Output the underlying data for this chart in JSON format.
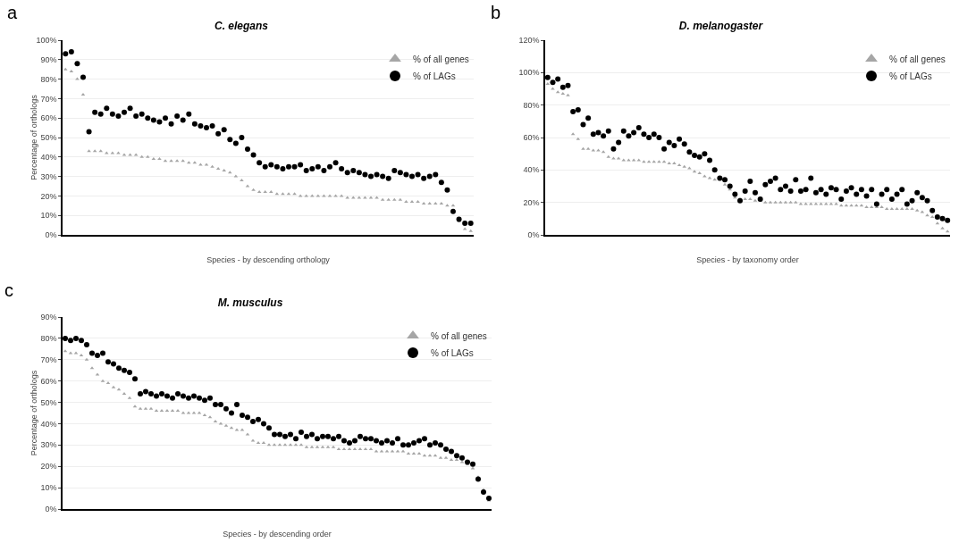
{
  "chart_data": [
    {
      "type": "scatter",
      "title": "C. elegans",
      "xlabel": "Species - by descending orthology",
      "ylabel": "Percentage of orthologs",
      "annotations": [
        "a"
      ],
      "grid": "y",
      "legend": "top right",
      "categories": [
        null,
        null,
        null,
        null,
        null,
        null,
        null,
        null,
        null,
        null,
        null,
        null,
        null,
        null,
        null,
        null,
        null,
        null,
        null,
        null,
        null,
        null,
        null,
        null,
        null,
        null,
        null,
        null,
        null,
        null,
        null,
        null,
        null,
        null,
        null,
        null,
        null,
        null,
        null,
        null,
        null,
        null,
        null,
        null,
        null,
        null,
        null,
        null,
        null,
        null,
        null,
        null,
        null,
        null,
        null,
        null,
        null,
        null,
        null,
        null,
        null,
        null,
        null,
        null,
        null,
        null,
        null,
        null,
        null,
        null
      ],
      "ylim": [
        0,
        100
      ],
      "yticks": [
        {
          "value": 0,
          "label": "0%"
        },
        {
          "value": 10,
          "label": "10%"
        },
        {
          "value": 20,
          "label": "20%"
        },
        {
          "value": 30,
          "label": "30%"
        },
        {
          "value": 40,
          "label": "40%"
        },
        {
          "value": 50,
          "label": "50%"
        },
        {
          "value": 60,
          "label": "60%"
        },
        {
          "value": 70,
          "label": "70%"
        },
        {
          "value": 80,
          "label": "80%"
        },
        {
          "value": 90,
          "label": "90%"
        },
        {
          "value": 100,
          "label": "100%"
        }
      ],
      "series": [
        {
          "name": "% of all genes",
          "color": "#a6a6a6",
          "marker": "triangle",
          "values": [
            85,
            84,
            80,
            72,
            43,
            43,
            43,
            42,
            42,
            42,
            41,
            41,
            41,
            40,
            40,
            39,
            39,
            38,
            38,
            38,
            38,
            37,
            37,
            36,
            36,
            35,
            34,
            33,
            32,
            30,
            28,
            25,
            23,
            22,
            22,
            22,
            21,
            21,
            21,
            21,
            20,
            20,
            20,
            20,
            20,
            20,
            20,
            20,
            19,
            19,
            19,
            19,
            19,
            19,
            18,
            18,
            18,
            18,
            17,
            17,
            17,
            16,
            16,
            16,
            16,
            15,
            15,
            7,
            3,
            2
          ]
        },
        {
          "name": "% of LAGs",
          "color": "#000000",
          "marker": "circle",
          "values": [
            93,
            94,
            88,
            81,
            53,
            63,
            62,
            65,
            62,
            61,
            63,
            65,
            61,
            62,
            60,
            59,
            58,
            60,
            57,
            61,
            59,
            62,
            57,
            56,
            55,
            56,
            52,
            54,
            49,
            47,
            50,
            44,
            41,
            37,
            35,
            36,
            35,
            34,
            35,
            35,
            36,
            33,
            34,
            35,
            33,
            35,
            37,
            34,
            32,
            33,
            32,
            31,
            30,
            31,
            30,
            29,
            33,
            32,
            31,
            30,
            31,
            29,
            30,
            31,
            27,
            23,
            12,
            8,
            6,
            6
          ]
        }
      ]
    },
    {
      "type": "scatter",
      "title": "D. melanogaster",
      "xlabel": "Species - by taxonomy order",
      "annotations": [
        "b"
      ],
      "grid": "y",
      "legend": "top right",
      "categories": [
        null,
        null,
        null,
        null,
        null,
        null,
        null,
        null,
        null,
        null,
        null,
        null,
        null,
        null,
        null,
        null,
        null,
        null,
        null,
        null,
        null,
        null,
        null,
        null,
        null,
        null,
        null,
        null,
        null,
        null,
        null,
        null,
        null,
        null,
        null,
        null,
        null,
        null,
        null,
        null,
        null,
        null,
        null,
        null,
        null,
        null,
        null,
        null,
        null,
        null,
        null,
        null,
        null,
        null,
        null,
        null,
        null,
        null,
        null,
        null,
        null,
        null,
        null,
        null,
        null,
        null,
        null,
        null,
        null,
        null,
        null,
        null,
        null,
        null,
        null,
        null,
        null,
        null,
        null,
        null
      ],
      "ylim": [
        0,
        120
      ],
      "yticks": [
        {
          "value": 0,
          "label": "0%"
        },
        {
          "value": 20,
          "label": "20%"
        },
        {
          "value": 40,
          "label": "40%"
        },
        {
          "value": 60,
          "label": "60%"
        },
        {
          "value": 80,
          "label": "80%"
        },
        {
          "value": 100,
          "label": "100%"
        },
        {
          "value": 120,
          "label": "120%"
        }
      ],
      "series": [
        {
          "name": "% of all genes",
          "color": "#a6a6a6",
          "marker": "triangle",
          "values": [
            93,
            90,
            88,
            87,
            86,
            62,
            59,
            53,
            53,
            52,
            52,
            51,
            48,
            47,
            47,
            46,
            46,
            46,
            46,
            45,
            45,
            45,
            45,
            45,
            44,
            44,
            43,
            42,
            41,
            39,
            38,
            36,
            35,
            34,
            34,
            31,
            28,
            23,
            22,
            22,
            22,
            21,
            21,
            20,
            20,
            20,
            20,
            20,
            20,
            20,
            19,
            19,
            19,
            19,
            19,
            19,
            19,
            19,
            18,
            18,
            18,
            18,
            18,
            17,
            17,
            17,
            17,
            16,
            16,
            16,
            16,
            16,
            16,
            15,
            14,
            12,
            11,
            7,
            4,
            2
          ]
        },
        {
          "name": "% of LAGs",
          "color": "#000000",
          "marker": "circle",
          "values": [
            97,
            94,
            96,
            91,
            92,
            76,
            77,
            68,
            72,
            62,
            63,
            61,
            64,
            53,
            57,
            64,
            61,
            63,
            66,
            62,
            60,
            62,
            60,
            53,
            57,
            55,
            59,
            56,
            51,
            49,
            48,
            50,
            46,
            40,
            35,
            34,
            30,
            25,
            21,
            27,
            33,
            26,
            22,
            31,
            33,
            35,
            28,
            30,
            27,
            34,
            27,
            28,
            35,
            26,
            28,
            25,
            29,
            28,
            22,
            27,
            29,
            25,
            28,
            24,
            28,
            19,
            25,
            28,
            22,
            25,
            28,
            19,
            21,
            26,
            23,
            21,
            15,
            11,
            10,
            9
          ]
        }
      ]
    },
    {
      "type": "scatter",
      "title": "M. musculus",
      "xlabel": "Species - by descending order",
      "ylabel": "Percentage of orthologs",
      "annotations": [
        "c"
      ],
      "grid": "y",
      "legend": "top right",
      "categories": [
        null,
        null,
        null,
        null,
        null,
        null,
        null,
        null,
        null,
        null,
        null,
        null,
        null,
        null,
        null,
        null,
        null,
        null,
        null,
        null,
        null,
        null,
        null,
        null,
        null,
        null,
        null,
        null,
        null,
        null,
        null,
        null,
        null,
        null,
        null,
        null,
        null,
        null,
        null,
        null,
        null,
        null,
        null,
        null,
        null,
        null,
        null,
        null,
        null,
        null,
        null,
        null,
        null,
        null,
        null,
        null,
        null,
        null,
        null,
        null,
        null,
        null,
        null,
        null,
        null,
        null,
        null,
        null,
        null,
        null,
        null,
        null,
        null,
        null,
        null,
        null,
        null,
        null,
        null,
        null
      ],
      "ylim": [
        0,
        90
      ],
      "yticks": [
        {
          "value": 0,
          "label": "0%"
        },
        {
          "value": 10,
          "label": "10%"
        },
        {
          "value": 20,
          "label": "20%"
        },
        {
          "value": 30,
          "label": "30%"
        },
        {
          "value": 40,
          "label": "40%"
        },
        {
          "value": 50,
          "label": "50%"
        },
        {
          "value": 60,
          "label": "60%"
        },
        {
          "value": 70,
          "label": "70%"
        },
        {
          "value": 80,
          "label": "80%"
        },
        {
          "value": 90,
          "label": "90%"
        }
      ],
      "series": [
        {
          "name": "% of all genes",
          "color": "#a6a6a6",
          "marker": "triangle",
          "values": [
            74,
            73,
            73,
            72,
            70,
            66,
            63,
            60,
            59,
            57,
            56,
            54,
            52,
            48,
            47,
            47,
            47,
            46,
            46,
            46,
            46,
            46,
            45,
            45,
            45,
            45,
            44,
            43,
            41,
            40,
            39,
            38,
            37,
            37,
            35,
            32,
            31,
            31,
            30,
            30,
            30,
            30,
            30,
            30,
            30,
            29,
            29,
            29,
            29,
            29,
            29,
            28,
            28,
            28,
            28,
            28,
            28,
            28,
            27,
            27,
            27,
            27,
            27,
            27,
            26,
            26,
            26,
            25,
            25,
            25,
            24,
            24,
            23,
            23,
            22,
            21,
            19,
            15,
            9,
            4
          ]
        },
        {
          "name": "% of LAGs",
          "color": "#000000",
          "marker": "circle",
          "values": [
            80,
            79,
            80,
            79,
            77,
            73,
            72,
            73,
            69,
            68,
            66,
            65,
            64,
            61,
            54,
            55,
            54,
            53,
            54,
            53,
            52,
            54,
            53,
            52,
            53,
            52,
            51,
            52,
            49,
            49,
            47,
            45,
            49,
            44,
            43,
            41,
            42,
            40,
            38,
            35,
            35,
            34,
            35,
            33,
            36,
            34,
            35,
            33,
            34,
            34,
            33,
            34,
            32,
            31,
            32,
            34,
            33,
            33,
            32,
            31,
            32,
            31,
            33,
            30,
            30,
            31,
            32,
            33,
            30,
            31,
            30,
            28,
            27,
            25,
            24,
            22,
            21,
            14,
            8,
            5
          ]
        }
      ]
    }
  ]
}
